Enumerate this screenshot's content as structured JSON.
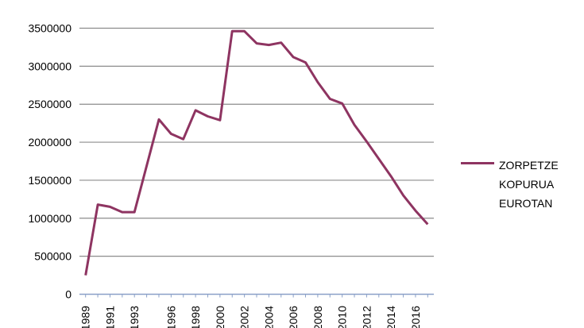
{
  "chart_data": {
    "type": "line",
    "title": "",
    "xlabel": "",
    "ylabel": "",
    "ylim": [
      0,
      3500000
    ],
    "yticks": [
      0,
      500000,
      1000000,
      1500000,
      2000000,
      2500000,
      3000000,
      3500000
    ],
    "ytick_labels": [
      "0",
      "500000",
      "1000000",
      "1500000",
      "2000000",
      "2500000",
      "3000000",
      "3500000"
    ],
    "xtick_labels": [
      "1989",
      "1991",
      "1993",
      "1996",
      "1998",
      "2000",
      "2002",
      "2004",
      "2006",
      "2008",
      "2010",
      "2012",
      "2014",
      "2016"
    ],
    "grid": true,
    "legend_position": "right",
    "x": [
      "1989",
      "1990",
      "1991",
      "1992",
      "1993",
      "1995",
      "1996",
      "1997",
      "1998",
      "1999",
      "2000",
      "2001",
      "2002",
      "2003",
      "2004",
      "2005",
      "2006",
      "2007",
      "2008",
      "2009",
      "2010",
      "2011",
      "2012",
      "2013",
      "2014",
      "2015",
      "2016",
      "2017"
    ],
    "series": [
      {
        "name": "ZORPETZE KOPURUA EUROTAN",
        "color": "#8e3461",
        "values": [
          250000,
          1180000,
          1150000,
          1080000,
          1080000,
          2300000,
          2110000,
          2040000,
          2420000,
          2340000,
          2290000,
          3460000,
          3460000,
          3300000,
          3280000,
          3310000,
          3120000,
          3050000,
          2790000,
          2570000,
          2510000,
          2230000,
          2010000,
          1780000,
          1550000,
          1300000,
          1100000,
          920000
        ]
      }
    ]
  }
}
